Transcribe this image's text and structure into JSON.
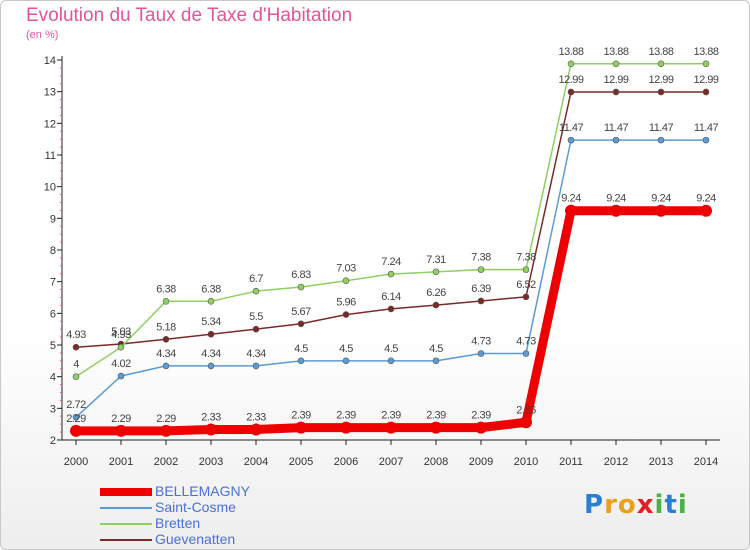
{
  "chart": {
    "title": "Evolution du Taux de Taxe d'Habitation",
    "subtitle": "(en %)"
  },
  "logo": {
    "letters": [
      "P",
      "r",
      "o",
      "x",
      "i",
      "t",
      "i"
    ],
    "colors": [
      "#2a7fd4",
      "#e8a020",
      "#e8a020",
      "#e02020",
      "#4ab048",
      "#2a7fd4",
      "#4ab048"
    ]
  },
  "chart_data": {
    "type": "line",
    "title": "Evolution du Taux de Taxe d'Habitation",
    "ylabel": "(en %)",
    "xlabel": "",
    "ylim": [
      2,
      14
    ],
    "yticks": [
      2,
      3,
      4,
      5,
      6,
      7,
      8,
      9,
      10,
      11,
      12,
      13,
      14
    ],
    "grid": false,
    "legend_position": "bottom-left",
    "x": [
      "2000",
      "2001",
      "2002",
      "2003",
      "2004",
      "2005",
      "2006",
      "2007",
      "2008",
      "2009",
      "2010",
      "2011",
      "2012",
      "2013",
      "2014"
    ],
    "series": [
      {
        "name": "BELLEMAGNY",
        "color": "#ee0000",
        "values": [
          2.29,
          2.29,
          2.29,
          2.33,
          2.33,
          2.39,
          2.39,
          2.39,
          2.39,
          2.39,
          2.56,
          9.24,
          9.24,
          9.24,
          9.24
        ],
        "labels": [
          "2.29",
          "2.29",
          "2.29",
          "2.33",
          "2.33",
          "2.39",
          "2.39",
          "2.39",
          "2.39",
          "2.39",
          "2.56",
          "9.24",
          "9.24",
          "9.24",
          "9.24"
        ]
      },
      {
        "name": "Saint-Cosme",
        "color": "#5b9bd5",
        "values": [
          2.72,
          4.02,
          4.34,
          4.34,
          4.34,
          4.5,
          4.5,
          4.5,
          4.5,
          4.73,
          4.73,
          11.47,
          11.47,
          11.47,
          11.47
        ],
        "labels": [
          "2.72",
          "4.02",
          "4.34",
          "4.34",
          "4.34",
          "4.5",
          "4.5",
          "4.5",
          "4.5",
          "4.73",
          "4.73",
          "11.47",
          "11.47",
          "11.47",
          "11.47"
        ]
      },
      {
        "name": "Bretten",
        "color": "#8fd060",
        "values": [
          4,
          4.93,
          6.38,
          6.38,
          6.7,
          6.83,
          7.03,
          7.24,
          7.31,
          7.38,
          7.38,
          13.88,
          13.88,
          13.88,
          13.88
        ],
        "labels": [
          "4",
          "4.93",
          "6.38",
          "6.38",
          "6.7",
          "6.83",
          "7.03",
          "7.24",
          "7.31",
          "7.38",
          "7.38",
          "13.88",
          "13.88",
          "13.88",
          "13.88"
        ]
      },
      {
        "name": "Guevenatten",
        "color": "#7a2a2a",
        "values": [
          4.93,
          5.03,
          5.18,
          5.34,
          5.5,
          5.67,
          5.96,
          6.14,
          6.26,
          6.39,
          6.52,
          12.99,
          12.99,
          12.99,
          12.99
        ],
        "labels": [
          "4.93",
          "5.03",
          "5.18",
          "5.34",
          "5.5",
          "5.67",
          "5.96",
          "6.14",
          "6.26",
          "6.39",
          "6.52",
          "12.99",
          "12.99",
          "12.99",
          "12.99"
        ]
      }
    ]
  }
}
